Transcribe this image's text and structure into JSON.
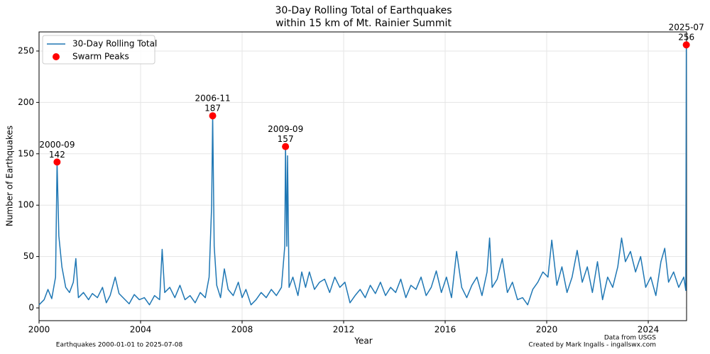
{
  "chart_data": {
    "type": "line",
    "title": [
      "30-Day Rolling Total of Earthquakes",
      "within 15 km of Mt. Rainier Summit"
    ],
    "x_label": "Year",
    "y_label": "Number of Earthquakes",
    "footnotes": [
      "Earthquakes 2000-01-01 to 2025-07-08",
      "Data from USGS",
      "Created by Mark Ingalls - ingallswx.com"
    ],
    "xlim": [
      2000,
      2025.51
    ],
    "ylim": [
      -12.4,
      268.6
    ],
    "xticks": [
      2000,
      2004,
      2008,
      2012,
      2016,
      2020,
      2024
    ],
    "yticks": [
      0,
      50,
      100,
      150,
      200,
      250
    ],
    "grid": true,
    "legend": "upper left",
    "series": [
      {
        "name": "30-Day Rolling Total",
        "type": "line",
        "color": "#1f77b4",
        "x": [
          2000.0,
          2000.2,
          2000.35,
          2000.5,
          2000.65,
          2000.71,
          2000.78,
          2000.9,
          2001.05,
          2001.2,
          2001.35,
          2001.45,
          2001.55,
          2001.75,
          2001.95,
          2002.1,
          2002.3,
          2002.5,
          2002.65,
          2002.8,
          2003.0,
          2003.15,
          2003.35,
          2003.55,
          2003.75,
          2003.95,
          2004.15,
          2004.35,
          2004.55,
          2004.75,
          2004.85,
          2004.95,
          2005.15,
          2005.35,
          2005.55,
          2005.75,
          2005.95,
          2006.15,
          2006.35,
          2006.55,
          2006.7,
          2006.8,
          2006.84,
          2006.9,
          2007.0,
          2007.15,
          2007.3,
          2007.45,
          2007.65,
          2007.85,
          2008.0,
          2008.15,
          2008.35,
          2008.55,
          2008.75,
          2008.95,
          2009.15,
          2009.35,
          2009.55,
          2009.68,
          2009.71,
          2009.76,
          2009.79,
          2009.85,
          2010.0,
          2010.2,
          2010.35,
          2010.5,
          2010.65,
          2010.85,
          2011.05,
          2011.25,
          2011.45,
          2011.65,
          2011.85,
          2012.05,
          2012.25,
          2012.45,
          2012.65,
          2012.85,
          2013.05,
          2013.25,
          2013.45,
          2013.65,
          2013.85,
          2014.05,
          2014.25,
          2014.45,
          2014.65,
          2014.85,
          2015.05,
          2015.25,
          2015.45,
          2015.65,
          2015.85,
          2016.05,
          2016.25,
          2016.45,
          2016.65,
          2016.85,
          2017.05,
          2017.25,
          2017.45,
          2017.65,
          2017.75,
          2017.85,
          2018.05,
          2018.25,
          2018.45,
          2018.65,
          2018.85,
          2019.05,
          2019.25,
          2019.45,
          2019.65,
          2019.85,
          2020.05,
          2020.2,
          2020.4,
          2020.6,
          2020.8,
          2021.0,
          2021.2,
          2021.4,
          2021.6,
          2021.8,
          2022.0,
          2022.2,
          2022.4,
          2022.6,
          2022.8,
          2022.95,
          2023.1,
          2023.3,
          2023.5,
          2023.7,
          2023.9,
          2024.1,
          2024.3,
          2024.5,
          2024.65,
          2024.8,
          2025.0,
          2025.2,
          2025.4,
          2025.48,
          2025.5
        ],
        "values": [
          3,
          8,
          18,
          9,
          30,
          142,
          70,
          40,
          20,
          15,
          25,
          48,
          10,
          15,
          8,
          14,
          10,
          20,
          5,
          12,
          30,
          14,
          9,
          4,
          13,
          8,
          10,
          3,
          12,
          8,
          57,
          15,
          20,
          10,
          22,
          8,
          12,
          5,
          15,
          10,
          30,
          100,
          187,
          60,
          22,
          10,
          38,
          18,
          12,
          25,
          10,
          18,
          3,
          8,
          15,
          10,
          18,
          12,
          20,
          60,
          157,
          60,
          148,
          20,
          30,
          12,
          35,
          20,
          35,
          18,
          25,
          28,
          15,
          30,
          20,
          25,
          5,
          12,
          18,
          10,
          22,
          14,
          25,
          12,
          20,
          15,
          28,
          10,
          22,
          18,
          30,
          12,
          20,
          36,
          15,
          30,
          10,
          55,
          20,
          10,
          22,
          30,
          12,
          35,
          68,
          20,
          28,
          48,
          15,
          25,
          8,
          10,
          3,
          18,
          25,
          35,
          30,
          66,
          22,
          40,
          15,
          30,
          56,
          25,
          40,
          15,
          45,
          8,
          30,
          20,
          40,
          68,
          45,
          55,
          35,
          50,
          20,
          30,
          12,
          45,
          58,
          25,
          35,
          20,
          30,
          17,
          256
        ]
      },
      {
        "name": "Swarm Peaks",
        "type": "scatter",
        "color": "#ff0000",
        "x": [
          2000.71,
          2006.84,
          2009.71,
          2025.5
        ],
        "values": [
          142,
          187,
          157,
          256
        ],
        "point_labels": [
          "2000-09",
          "2006-11",
          "2009-09",
          "2025-07"
        ]
      }
    ]
  }
}
